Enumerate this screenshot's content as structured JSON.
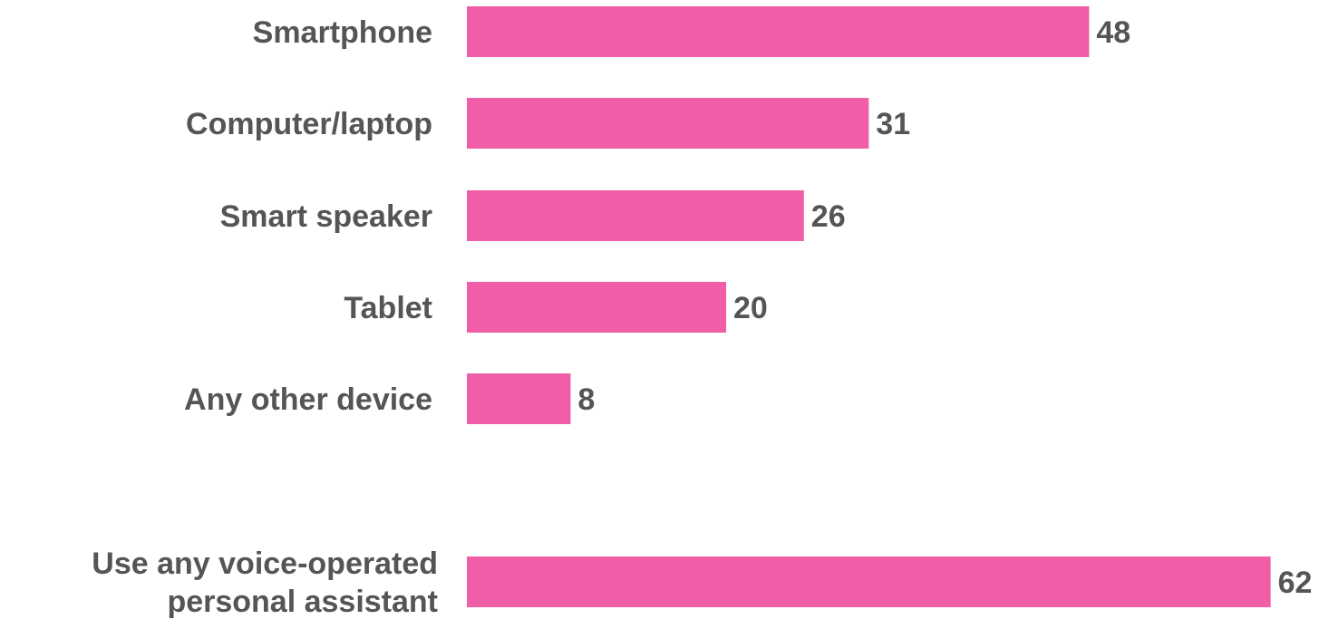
{
  "chart_data": {
    "type": "bar",
    "orientation": "horizontal",
    "title": "",
    "xlabel": "",
    "ylabel": "",
    "categories": [
      "Smartphone",
      "Computer/laptop",
      "Smart speaker",
      "Tablet",
      "Any other device",
      "Use any voice-operated personal assistant"
    ],
    "category_lines": [
      [
        "Smartphone"
      ],
      [
        "Computer/laptop"
      ],
      [
        "Smart speaker"
      ],
      [
        "Tablet"
      ],
      [
        "Any other device"
      ],
      [
        "Use any voice-operated",
        "personal assistant"
      ]
    ],
    "values": [
      48,
      31,
      26,
      20,
      8,
      62
    ],
    "value_labels": [
      "48",
      "31",
      "26",
      "20",
      "8",
      "62"
    ],
    "xlim": [
      0,
      62
    ],
    "grid": false,
    "legend": "none",
    "bar_color": "#ef5ea6",
    "text_color": "#555555"
  }
}
